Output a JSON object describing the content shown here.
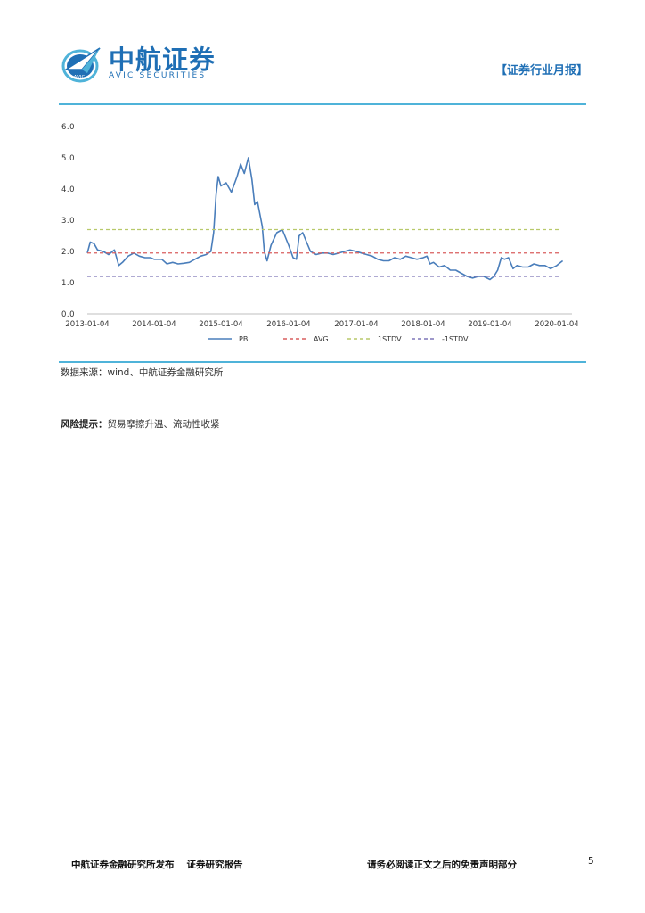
{
  "header": {
    "logo_cn": "中航证券",
    "logo_en": "AVIC SECURITIES",
    "logo_badge": "AVIC",
    "report_type": "【证券行业月报】",
    "brand_color": "#1f6fb5",
    "accent_color": "#4fb3d9"
  },
  "chart_data": {
    "type": "line",
    "x_ticks": [
      "2013-01-04",
      "2014-01-04",
      "2015-01-04",
      "2016-01-04",
      "2017-01-04",
      "2018-01-04",
      "2019-01-04",
      "2020-01-04"
    ],
    "ylim": [
      0,
      6
    ],
    "y_ticks": [
      "0.0",
      "1.0",
      "2.0",
      "3.0",
      "4.0",
      "5.0",
      "6.0"
    ],
    "legend_position": "bottom",
    "series": [
      {
        "name": "PB",
        "color": "#4a7ebb",
        "style": "solid",
        "points": [
          [
            "2013-01-04",
            1.95
          ],
          [
            "2013-01-20",
            2.3
          ],
          [
            "2013-02-10",
            2.25
          ],
          [
            "2013-03-01",
            2.05
          ],
          [
            "2013-04-01",
            2.0
          ],
          [
            "2013-05-01",
            1.9
          ],
          [
            "2013-06-01",
            2.05
          ],
          [
            "2013-06-25",
            1.55
          ],
          [
            "2013-07-15",
            1.65
          ],
          [
            "2013-08-15",
            1.85
          ],
          [
            "2013-09-15",
            1.95
          ],
          [
            "2013-10-15",
            1.85
          ],
          [
            "2013-11-15",
            1.8
          ],
          [
            "2013-12-15",
            1.8
          ],
          [
            "2014-01-04",
            1.75
          ],
          [
            "2014-02-15",
            1.75
          ],
          [
            "2014-03-15",
            1.6
          ],
          [
            "2014-04-15",
            1.65
          ],
          [
            "2014-05-15",
            1.6
          ],
          [
            "2014-06-15",
            1.62
          ],
          [
            "2014-07-15",
            1.65
          ],
          [
            "2014-08-15",
            1.75
          ],
          [
            "2014-09-15",
            1.85
          ],
          [
            "2014-10-15",
            1.9
          ],
          [
            "2014-11-10",
            2.0
          ],
          [
            "2014-11-25",
            2.6
          ],
          [
            "2014-12-08",
            3.8
          ],
          [
            "2014-12-20",
            4.4
          ],
          [
            "2015-01-04",
            4.1
          ],
          [
            "2015-02-01",
            4.2
          ],
          [
            "2015-03-01",
            3.9
          ],
          [
            "2015-04-01",
            4.4
          ],
          [
            "2015-04-20",
            4.8
          ],
          [
            "2015-05-10",
            4.5
          ],
          [
            "2015-06-01",
            5.0
          ],
          [
            "2015-06-20",
            4.3
          ],
          [
            "2015-07-05",
            3.5
          ],
          [
            "2015-07-20",
            3.6
          ],
          [
            "2015-08-15",
            2.8
          ],
          [
            "2015-08-26",
            2.0
          ],
          [
            "2015-09-10",
            1.7
          ],
          [
            "2015-10-01",
            2.2
          ],
          [
            "2015-11-01",
            2.6
          ],
          [
            "2015-12-01",
            2.7
          ],
          [
            "2016-01-04",
            2.2
          ],
          [
            "2016-01-28",
            1.8
          ],
          [
            "2016-02-15",
            1.75
          ],
          [
            "2016-03-01",
            2.5
          ],
          [
            "2016-03-20",
            2.6
          ],
          [
            "2016-04-10",
            2.3
          ],
          [
            "2016-05-01",
            2.0
          ],
          [
            "2016-06-01",
            1.9
          ],
          [
            "2016-07-01",
            1.95
          ],
          [
            "2016-08-01",
            1.95
          ],
          [
            "2016-09-01",
            1.9
          ],
          [
            "2016-10-01",
            1.95
          ],
          [
            "2016-11-01",
            2.0
          ],
          [
            "2016-12-01",
            2.05
          ],
          [
            "2017-01-04",
            2.0
          ],
          [
            "2017-02-01",
            1.95
          ],
          [
            "2017-03-01",
            1.9
          ],
          [
            "2017-04-01",
            1.85
          ],
          [
            "2017-05-01",
            1.75
          ],
          [
            "2017-06-01",
            1.7
          ],
          [
            "2017-07-01",
            1.7
          ],
          [
            "2017-08-01",
            1.8
          ],
          [
            "2017-09-01",
            1.75
          ],
          [
            "2017-10-01",
            1.85
          ],
          [
            "2017-11-01",
            1.8
          ],
          [
            "2017-12-01",
            1.75
          ],
          [
            "2018-01-04",
            1.8
          ],
          [
            "2018-01-25",
            1.85
          ],
          [
            "2018-02-10",
            1.6
          ],
          [
            "2018-03-01",
            1.65
          ],
          [
            "2018-04-01",
            1.5
          ],
          [
            "2018-05-01",
            1.55
          ],
          [
            "2018-06-01",
            1.4
          ],
          [
            "2018-07-01",
            1.4
          ],
          [
            "2018-08-01",
            1.3
          ],
          [
            "2018-09-01",
            1.2
          ],
          [
            "2018-10-01",
            1.15
          ],
          [
            "2018-11-01",
            1.2
          ],
          [
            "2018-12-01",
            1.2
          ],
          [
            "2019-01-04",
            1.1
          ],
          [
            "2019-01-25",
            1.2
          ],
          [
            "2019-02-15",
            1.4
          ],
          [
            "2019-03-07",
            1.8
          ],
          [
            "2019-03-25",
            1.75
          ],
          [
            "2019-04-15",
            1.8
          ],
          [
            "2019-05-10",
            1.45
          ],
          [
            "2019-06-01",
            1.55
          ],
          [
            "2019-07-01",
            1.5
          ],
          [
            "2019-08-01",
            1.5
          ],
          [
            "2019-09-01",
            1.6
          ],
          [
            "2019-10-01",
            1.55
          ],
          [
            "2019-11-01",
            1.55
          ],
          [
            "2019-12-01",
            1.45
          ],
          [
            "2020-01-04",
            1.55
          ],
          [
            "2020-01-25",
            1.65
          ],
          [
            "2020-02-05",
            1.7
          ]
        ]
      },
      {
        "name": "AVG",
        "color": "#d95f5f",
        "style": "dashed",
        "value": 1.95
      },
      {
        "name": "1STDV",
        "color": "#b8c96a",
        "style": "dashed",
        "value": 2.7
      },
      {
        "name": "-1STDV",
        "color": "#7f77b8",
        "style": "dashed",
        "value": 1.2
      }
    ]
  },
  "source": {
    "text": "数据来源：wind、中航证券金融研究所"
  },
  "risk": {
    "label": "风险提示：",
    "text": "贸易摩擦升温、流动性收紧"
  },
  "footer": {
    "publisher": "中航证券金融研究所发布",
    "report_kind": "证券研究报告",
    "disclaimer": "请务必阅读正文之后的免责声明部分",
    "page": "5"
  }
}
